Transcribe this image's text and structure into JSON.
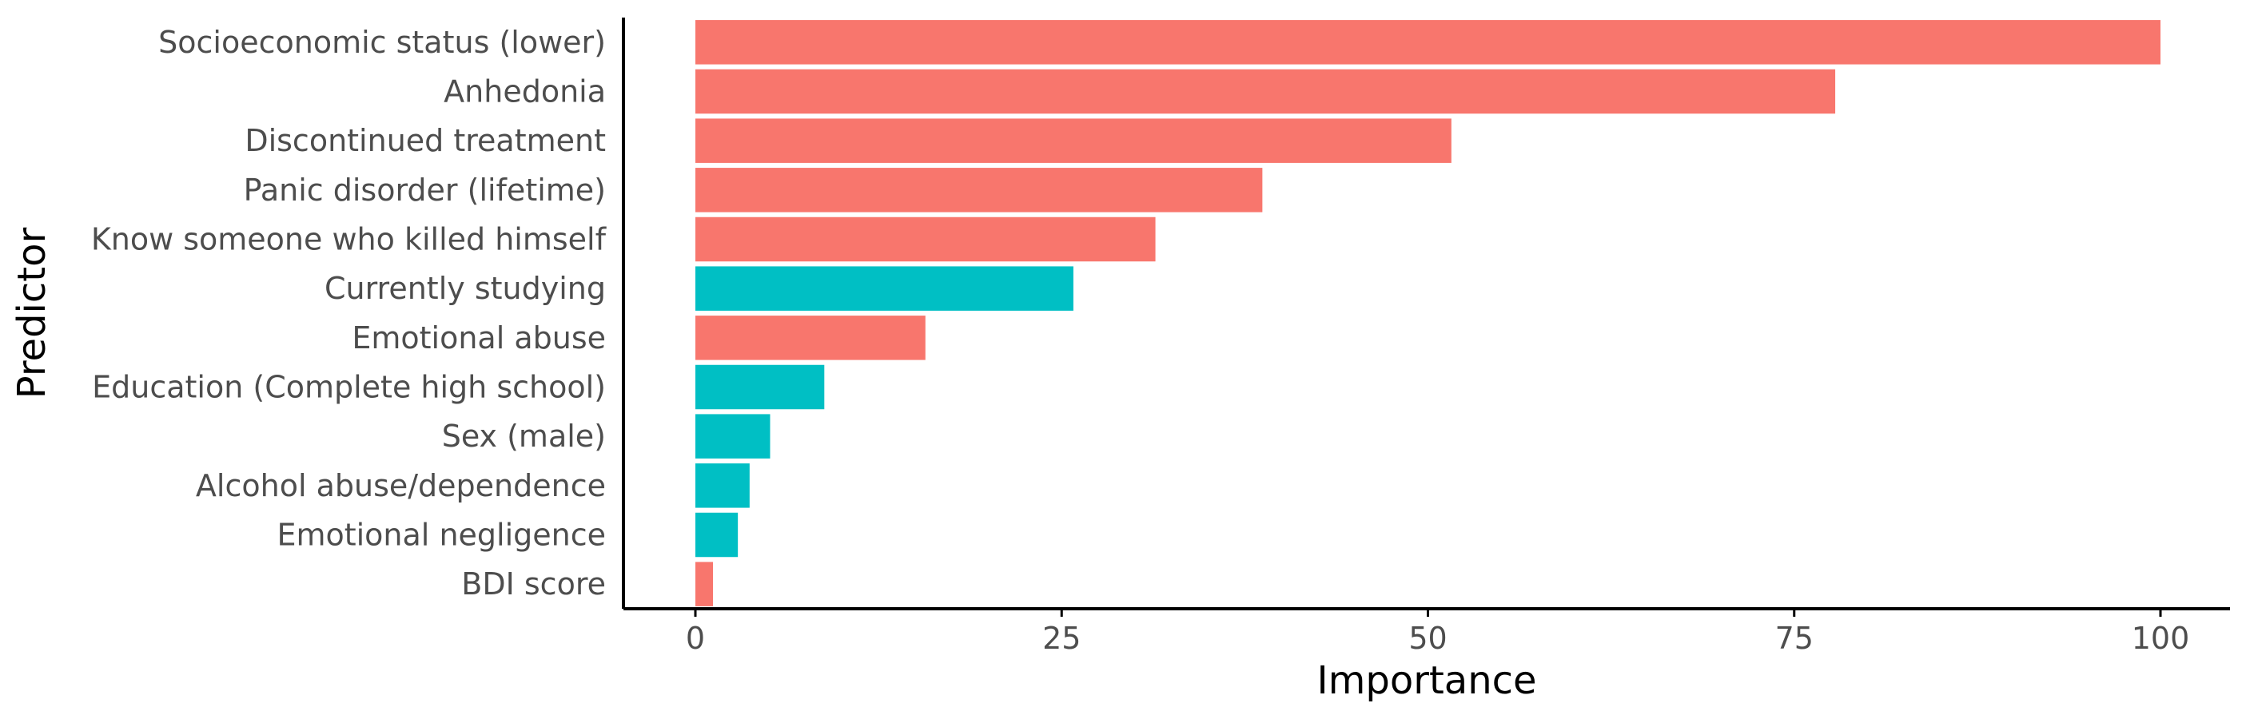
{
  "chart_data": {
    "type": "bar",
    "orientation": "horizontal",
    "xlabel": "Importance",
    "ylabel": "Predictor",
    "xlim": [
      0,
      100
    ],
    "xticks": [
      0,
      25,
      50,
      75,
      100
    ],
    "grid": false,
    "legend": "none",
    "colors": {
      "red": "#F8766D",
      "teal": "#00BFC4"
    },
    "categories": [
      "Socioeconomic status (lower)",
      "Anhedonia",
      "Discontinued treatment",
      "Panic disorder (lifetime)",
      "Know someone who killed himself",
      "Currently studying",
      "Emotional abuse",
      "Education (Complete high school)",
      "Sex (male)",
      "Alcohol abuse/dependence",
      "Emotional negligence",
      "BDI score"
    ],
    "values": [
      100,
      77.8,
      51.6,
      38.7,
      31.4,
      25.8,
      15.7,
      8.8,
      5.1,
      3.7,
      2.9,
      1.2
    ],
    "bar_colors": [
      "red",
      "red",
      "red",
      "red",
      "red",
      "teal",
      "red",
      "teal",
      "teal",
      "teal",
      "teal",
      "red"
    ]
  }
}
